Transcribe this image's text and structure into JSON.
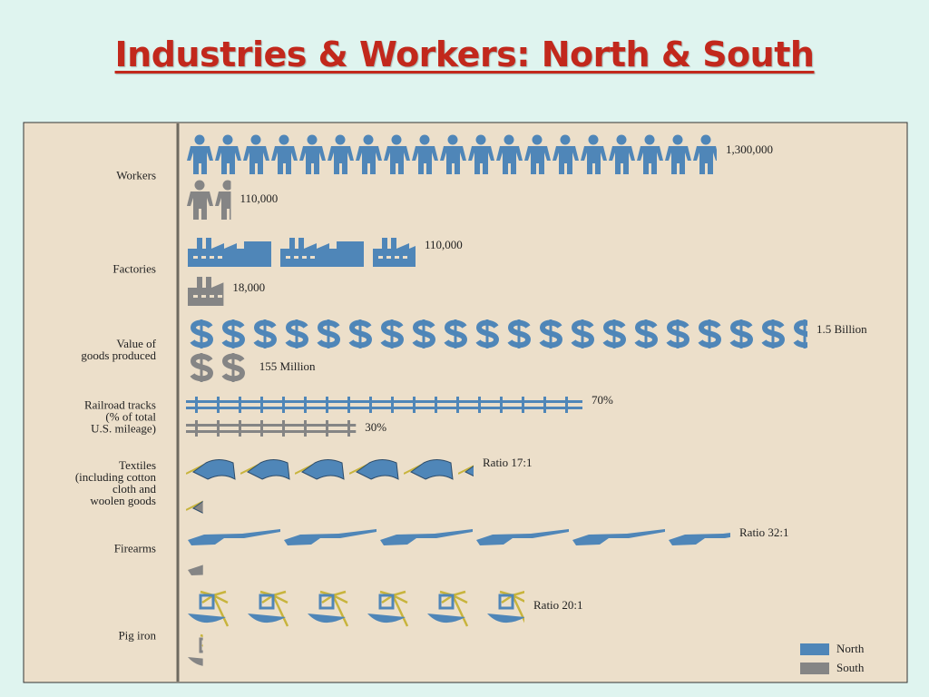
{
  "chart_data": {
    "type": "pictograph",
    "title": "Industries & Workers: North & South",
    "categories": [
      "Workers",
      "Factories",
      "Value of\ngoods produced",
      "Railroad tracks\n(% of total\nU.S. mileage)",
      "Textiles\n(including cotton\ncloth and\nwoolen goods",
      "Firearms",
      "Pig iron"
    ],
    "series": [
      {
        "name": "North",
        "color": "#4f86b8",
        "values": [
          1300000,
          110000,
          1500000000,
          70,
          17,
          32,
          20
        ],
        "value_labels": [
          "1,300,000",
          "110,000",
          "1.5 Billion",
          "70%",
          "Ratio 17:1",
          "Ratio 32:1",
          "Ratio 20:1"
        ]
      },
      {
        "name": "South",
        "color": "#858585",
        "values": [
          110000,
          18000,
          155000000,
          30,
          1,
          1,
          1
        ],
        "value_labels": [
          "110,000",
          "18,000",
          "155 Million",
          "30%",
          null,
          null,
          null
        ]
      }
    ],
    "legend": "bottom-right"
  }
}
